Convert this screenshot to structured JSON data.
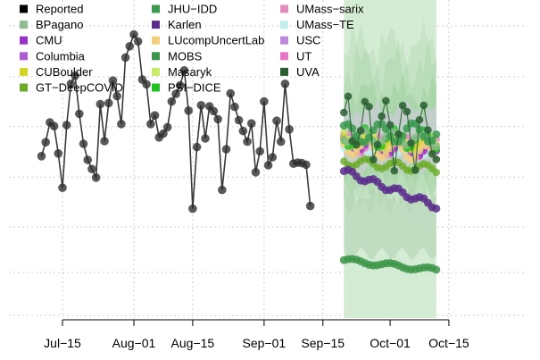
{
  "chart_data": {
    "type": "line",
    "title": "",
    "xlabel": "",
    "ylabel": "",
    "x_tick_labels": [
      "Jul−15",
      "Aug−01",
      "Aug−15",
      "Sep−01",
      "Sep−15",
      "Oct−01",
      "Oct−15"
    ],
    "x_tick_dates": [
      "2020-07-15",
      "2020-08-01",
      "2020-08-15",
      "2020-09-01",
      "2020-09-15",
      "2020-10-01",
      "2020-10-15"
    ],
    "y_tick_labels_shown": false,
    "grid": true,
    "legend_placement": "top-left",
    "forecast_shading_range": [
      "2020-09-20",
      "2020-10-12"
    ],
    "series": [
      {
        "name": "Reported",
        "color": "#000000",
        "style": "line-points",
        "x": [
          "2020-07-10",
          "2020-07-11",
          "2020-07-12",
          "2020-07-13",
          "2020-07-14",
          "2020-07-15",
          "2020-07-16",
          "2020-07-17",
          "2020-07-18",
          "2020-07-19",
          "2020-07-20",
          "2020-07-21",
          "2020-07-22",
          "2020-07-23",
          "2020-07-24",
          "2020-07-25",
          "2020-07-26",
          "2020-07-27",
          "2020-07-28",
          "2020-07-29",
          "2020-07-30",
          "2020-07-31",
          "2020-08-01",
          "2020-08-02",
          "2020-08-03",
          "2020-08-04",
          "2020-08-05",
          "2020-08-06",
          "2020-08-07",
          "2020-08-08",
          "2020-08-09",
          "2020-08-10",
          "2020-08-11",
          "2020-08-12",
          "2020-08-13",
          "2020-08-14",
          "2020-08-15",
          "2020-08-16",
          "2020-08-17",
          "2020-08-18",
          "2020-08-19",
          "2020-08-20",
          "2020-08-21",
          "2020-08-22",
          "2020-08-23",
          "2020-08-24",
          "2020-08-25",
          "2020-08-26",
          "2020-08-27",
          "2020-08-28",
          "2020-08-29",
          "2020-08-30",
          "2020-08-31",
          "2020-09-01",
          "2020-09-02",
          "2020-09-03",
          "2020-09-04",
          "2020-09-05",
          "2020-09-06",
          "2020-09-07",
          "2020-09-08",
          "2020-09-09",
          "2020-09-10",
          "2020-09-11",
          "2020-09-12"
        ],
        "values": [
          38.2,
          40.8,
          44.5,
          43.8,
          38.7,
          32.3,
          44.0,
          51.7,
          53.2,
          46.1,
          40.5,
          37.5,
          35.8,
          34.2,
          47.9,
          41.0,
          48.1,
          52.3,
          49.4,
          44.2,
          56.6,
          58.7,
          60.9,
          59.6,
          52.5,
          51.6,
          44.2,
          45.8,
          41.7,
          42.4,
          43.6,
          48.4,
          49.8,
          51.4,
          54.2,
          46.7,
          28.4,
          39.9,
          47.7,
          41.5,
          47.5,
          46.6,
          45.1,
          31.9,
          39.5,
          49.9,
          47.4,
          44.9,
          42.9,
          40.9,
          44.3,
          35.2,
          39.1,
          48.4,
          36.5,
          38.0,
          44.8,
          40.9,
          51.7,
          43.2,
          36.8,
          37.0,
          36.9,
          36.6,
          28.9
        ]
      },
      {
        "name": "BPagano",
        "color": "#8fbc8f"
      },
      {
        "name": "CMU",
        "color": "#9932cc"
      },
      {
        "name": "Columbia",
        "color": "#b05bd6"
      },
      {
        "name": "CUBoulder",
        "color": "#d4d425"
      },
      {
        "name": "GT−DeepCOVID",
        "color": "#6bab26"
      },
      {
        "name": "JHU−IDD",
        "color": "#3b9a50",
        "x": [
          "2020-09-20",
          "2020-10-12"
        ],
        "values": [
          42.4,
          42.7
        ]
      },
      {
        "name": "Karlen",
        "color": "#5a2d8c",
        "x": [
          "2020-09-20",
          "2020-10-12"
        ],
        "values": [
          35.4,
          28.9
        ]
      },
      {
        "name": "LUcompUncertLab",
        "color": "#f2cf7d"
      },
      {
        "name": "MOBS",
        "color": "#3c9648",
        "x": [
          "2020-09-20",
          "2020-10-12"
        ],
        "values": [
          18.8,
          16.9
        ]
      },
      {
        "name": "Masaryk",
        "color": "#c8ec6a"
      },
      {
        "name": "PSI−DICE",
        "color": "#22c122"
      },
      {
        "name": "UMass−sarix",
        "color": "#e38dbd"
      },
      {
        "name": "UMass−TE",
        "color": "#c3eef0"
      },
      {
        "name": "USC",
        "color": "#bf87d9"
      },
      {
        "name": "UT",
        "color": "#e874c6"
      },
      {
        "name": "UVA",
        "color": "#2a5e32"
      }
    ]
  }
}
